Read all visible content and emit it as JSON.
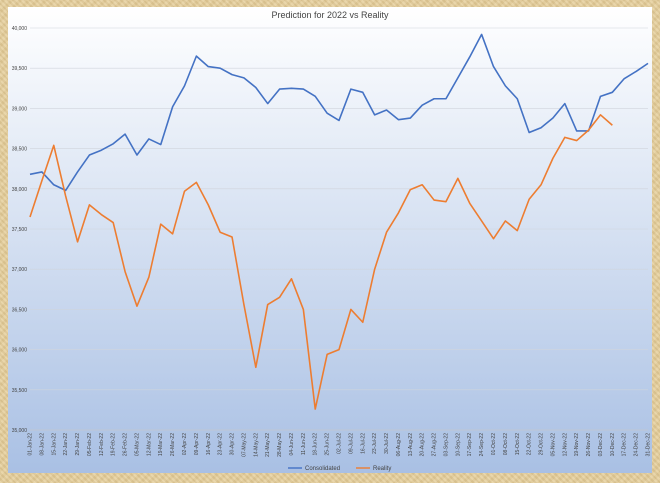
{
  "chart_data": {
    "type": "line",
    "title": "Prediction for 2022 vs Reality",
    "xlabel": "",
    "ylabel": "",
    "ylim": [
      35000,
      40000
    ],
    "yticks": [
      "35,000",
      "35,500",
      "36,000",
      "36,500",
      "37,000",
      "37,500",
      "38,000",
      "38,500",
      "39,000",
      "39,500",
      "40,000"
    ],
    "x": [
      "01-Jan-22",
      "08-Jan-22",
      "15-Jan-22",
      "22-Jan-22",
      "29-Jan-22",
      "05-Feb-22",
      "12-Feb-22",
      "19-Feb-22",
      "26-Feb-22",
      "05-Mar-22",
      "12-Mar-22",
      "19-Mar-22",
      "26-Mar-22",
      "02-Apr-22",
      "09-Apr-22",
      "16-Apr-22",
      "23-Apr-22",
      "30-Apr-22",
      "07-May-22",
      "14-May-22",
      "21-May-22",
      "28-May-22",
      "04-Jun-22",
      "11-Jun-22",
      "18-Jun-22",
      "25-Jun-22",
      "02-Jul-22",
      "09-Jul-22",
      "16-Jul-22",
      "23-Jul-22",
      "30-Jul-22",
      "06-Aug-22",
      "13-Aug-22",
      "20-Aug-22",
      "27-Aug-22",
      "03-Sep-22",
      "10-Sep-22",
      "17-Sep-22",
      "24-Sep-22",
      "01-Oct-22",
      "08-Oct-22",
      "15-Oct-22",
      "22-Oct-22",
      "29-Oct-22",
      "05-Nov-22",
      "12-Nov-22",
      "19-Nov-22",
      "26-Nov-22",
      "03-Dec-22",
      "10-Dec-22",
      "17-Dec-22",
      "24-Dec-22",
      "31-Dec-22"
    ],
    "series": [
      {
        "name": "Consolidated",
        "color": "#4472c4",
        "values": [
          38180,
          38210,
          38050,
          37980,
          38210,
          38420,
          38480,
          38560,
          38680,
          38420,
          38620,
          38550,
          39020,
          39280,
          39650,
          39520,
          39500,
          39420,
          39380,
          39260,
          39060,
          39240,
          39250,
          39240,
          39150,
          38940,
          38850,
          39240,
          39200,
          38920,
          38980,
          38860,
          38880,
          39040,
          39120,
          39120,
          39380,
          39640,
          39920,
          39520,
          39280,
          39120,
          38700,
          38760,
          38880,
          39060,
          38720,
          38720,
          39150,
          39200,
          39370,
          39460,
          39560
        ]
      },
      {
        "name": "Reality",
        "color": "#ed7d31",
        "values": [
          37650,
          38100,
          38540,
          37910,
          37340,
          37800,
          37680,
          37580,
          36970,
          36540,
          36900,
          37560,
          37440,
          37970,
          38080,
          37800,
          37460,
          37400,
          36560,
          35780,
          36560,
          36650,
          36880,
          36500,
          35260,
          35940,
          36000,
          36500,
          36340,
          37000,
          37460,
          37700,
          37990,
          38050,
          37860,
          37840,
          38130,
          37820,
          37600,
          37380,
          37600,
          37480,
          37870,
          38050,
          38380,
          38640,
          38600,
          38730,
          38920,
          38790,
          null,
          null,
          null
        ]
      }
    ],
    "legend": "bottom",
    "grid": true
  }
}
